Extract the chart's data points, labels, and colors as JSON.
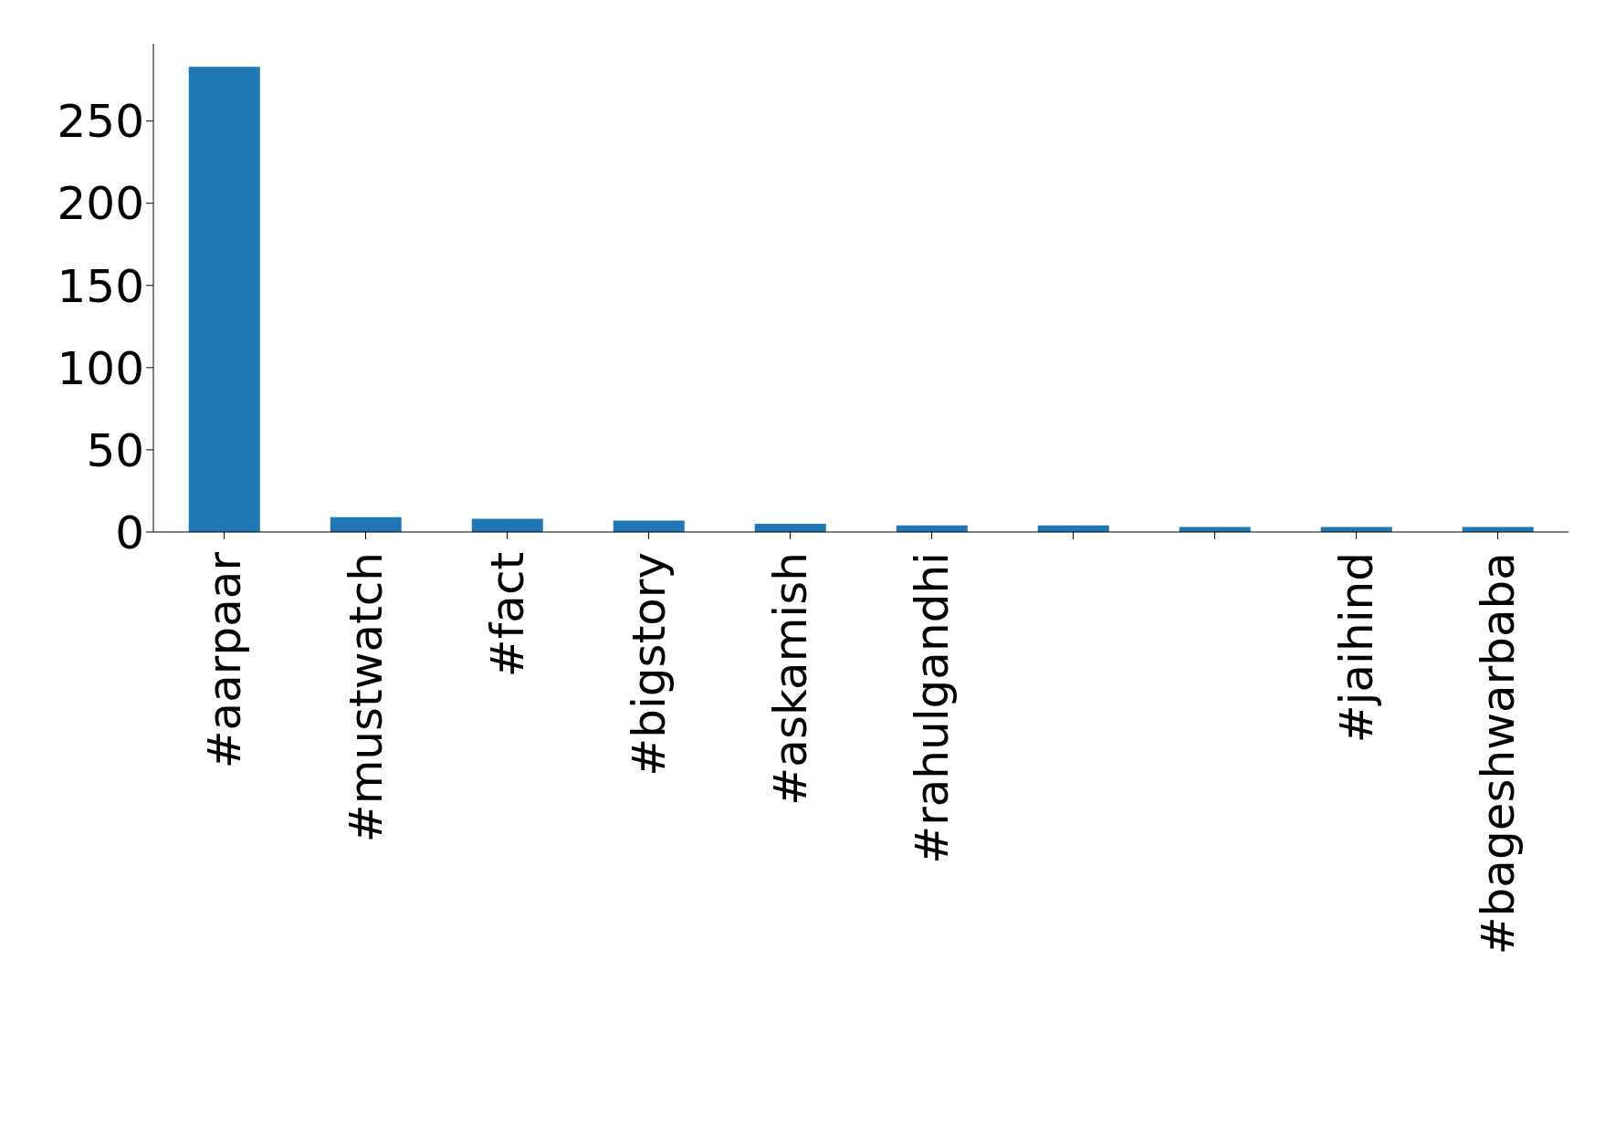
{
  "chart_data": {
    "type": "bar",
    "categories": [
      "#aarpaar",
      "#mustwatch",
      "#fact",
      "#bigstory",
      "#askamish",
      "#rahulgandhi",
      null,
      null,
      "#jaihind",
      "#bageshwarbaba"
    ],
    "values": [
      283,
      9,
      8,
      7,
      5,
      4,
      4,
      3,
      3,
      3
    ],
    "color": "#1f77b4",
    "ylim": [
      0,
      297
    ],
    "yticks": [
      0,
      50,
      100,
      150,
      200,
      250
    ],
    "grid": false,
    "legend": false
  }
}
